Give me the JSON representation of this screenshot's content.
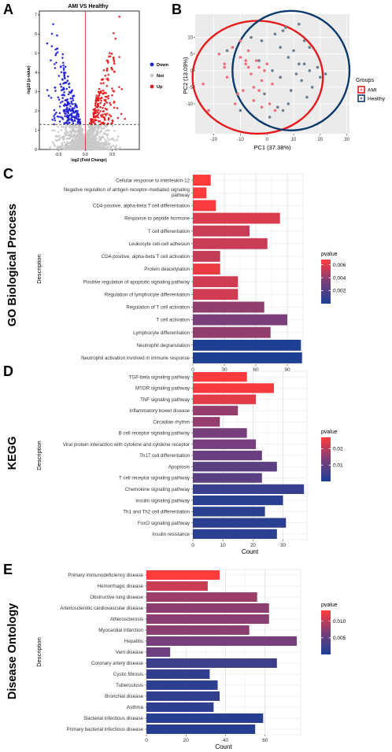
{
  "chart_data": [
    {
      "panel_label": "A",
      "type": "scatter",
      "title": "AMI VS Healthy",
      "xlabel": "log2 (Fold Change)",
      "ylabel": "-log10 (p-value)",
      "xlim": [
        -0.85,
        1.0
      ],
      "ylim": [
        0,
        7.2
      ],
      "x_ticks": [
        "-0.5",
        "0.0",
        "0.5"
      ],
      "y_ticks": [
        "0",
        "1",
        "2",
        "3",
        "4",
        "5",
        "6",
        "7"
      ],
      "threshold_y": 1.3,
      "legend": {
        "position": "right",
        "entries": [
          "Down",
          "Not",
          "Up"
        ]
      },
      "colors": {
        "Down": "#1f1fd6",
        "Not": "#c8c8c8",
        "Up": "#e41a1c"
      }
    },
    {
      "panel_label": "B",
      "type": "scatter",
      "xlabel": "PC1 (37.38%)",
      "ylabel": "PC2 (13.09%)",
      "xlim": [
        -27,
        31
      ],
      "ylim": [
        -19,
        17
      ],
      "x_ticks": [
        -20,
        -10,
        0,
        10,
        20,
        30
      ],
      "y_ticks": [
        -10,
        -5,
        0,
        5,
        10
      ],
      "legend": {
        "title": "Groups",
        "position": "right",
        "entries": [
          "AMI",
          "Healthy"
        ]
      },
      "colors": {
        "AMI": "#e41a1c",
        "Healthy": "#0b3a6b",
        "AMI_point": "#f07080",
        "Healthy_point": "#6d7f8e"
      },
      "series": [
        {
          "name": "AMI",
          "x": [
            -24,
            -22,
            -18,
            -16,
            -16,
            -13,
            -12,
            -11,
            -10,
            -9,
            -8,
            -7,
            -7,
            -6,
            -5,
            -5,
            -4,
            -3,
            -2,
            -2,
            -1,
            0,
            1,
            2,
            3,
            5,
            -15,
            -8,
            -3,
            -10
          ],
          "y": [
            -4,
            -12,
            5,
            2,
            1,
            7,
            -10,
            -7,
            4,
            -6,
            2,
            1,
            6,
            -1,
            -5,
            -9,
            3,
            1,
            -3,
            -11,
            0,
            2,
            -10,
            -4,
            -12,
            -2,
            -2,
            3,
            -6,
            9
          ]
        },
        {
          "name": "Healthy",
          "x": [
            -15,
            -10,
            -6,
            -3,
            -2,
            1,
            2,
            3,
            4,
            5,
            5,
            6,
            7,
            8,
            9,
            10,
            11,
            12,
            12,
            13,
            14,
            14,
            15,
            16,
            16,
            17,
            19,
            20,
            22,
            -1,
            8,
            6
          ],
          "y": [
            6,
            -12,
            10,
            3,
            9,
            -14,
            0,
            11,
            -11,
            7,
            -2,
            12,
            13,
            4,
            -6,
            6,
            -1,
            2,
            14,
            -3,
            9,
            2,
            -8,
            0,
            7,
            -5,
            1,
            -2,
            -1,
            -7,
            -10,
            -12
          ]
        }
      ]
    },
    {
      "panel_label": "C",
      "type": "bar",
      "side_title": "GO Biological Process",
      "xlabel": "Count",
      "ylabel": "Description",
      "xlim": [
        0,
        105
      ],
      "x_ticks": [
        0,
        30,
        60,
        90
      ],
      "legend": {
        "title": "pvalue",
        "position": "right",
        "ticks": [
          "0.006",
          "0.004",
          "0.002"
        ],
        "min": 0,
        "max": 0.0068
      },
      "categories": [
        "Cellular response to interleukin-12",
        "Negative regulation of antigen receptor-mediated signaling\npathway",
        "CD4-positive, alpha-beta T cell differentiation",
        "Response to peptide hormone",
        "T cell differentiation",
        "Leukocyte cell-cell adhesion",
        "CD4-positive, alpha-beta T cell activation",
        "Protein deacetylation",
        "Positive regulation of apoptotic signaling pathway",
        "Regulation of lymphocyte differentiation",
        "Regulation of T cell activation",
        "T cell activation",
        "Lymphocyte differentiation",
        "Neutrophil degranulation",
        "Neutrophil activation involved in immune response"
      ],
      "values": [
        17,
        13,
        22,
        83,
        54,
        71,
        26,
        26,
        43,
        43,
        68,
        90,
        74,
        103,
        104
      ],
      "pvalues": [
        0.0068,
        0.0068,
        0.0066,
        0.0058,
        0.0054,
        0.0054,
        0.0053,
        0.0063,
        0.0056,
        0.0056,
        0.004,
        0.0034,
        0.004,
        0.0001,
        0.0001
      ]
    },
    {
      "panel_label": "D",
      "type": "bar",
      "side_title": "KEGG",
      "xlabel": "Count",
      "ylabel": "Description",
      "xlim": [
        0,
        38
      ],
      "x_ticks": [
        0,
        10,
        20,
        30
      ],
      "legend": {
        "title": "pvalue",
        "position": "right",
        "ticks": [
          "0.02",
          "0.01"
        ],
        "min": 0,
        "max": 0.027
      },
      "categories": [
        "TGF-beta signaling pathway",
        "MTOR signaling pathway",
        "TNF signaling pathway",
        "Inflammatory bowel disease",
        "Circadian rhythm",
        "B cell receptor signaling pathway",
        "Viral protein interaction with cytokine and cytokine receptor",
        "Th17 cell differentiation",
        "Apoptosis",
        "T cell receptor signaling pathway",
        "Chemokine signaling pathway",
        "Insulin signaling pathway",
        "Th1 and Th2 cell differentiation",
        "FoxO signaling pathway",
        "Insulin resistance"
      ],
      "values": [
        18,
        27,
        21,
        15,
        9,
        18,
        21,
        23,
        28,
        23,
        37,
        30,
        24,
        31,
        28
      ],
      "pvalues": [
        0.027,
        0.026,
        0.024,
        0.016,
        0.016,
        0.013,
        0.013,
        0.011,
        0.009,
        0.009,
        0.004,
        0.002,
        0.002,
        0.002,
        0.002
      ]
    },
    {
      "panel_label": "E",
      "type": "bar",
      "side_title": "Disease Ontology",
      "xlabel": "Count",
      "ylabel": "Description",
      "xlim": [
        0,
        78
      ],
      "x_ticks": [
        0,
        20,
        40,
        60
      ],
      "legend": {
        "title": "pvalue",
        "position": "right",
        "ticks": [
          "0.010",
          "0.005"
        ],
        "min": 0,
        "max": 0.0132
      },
      "categories": [
        "Primary immunodeficiency disease",
        "Hemorrhagic disease",
        "Obstructive lung disease",
        "Arteriosclerotic cardiovascular disease",
        "Atherosclerosis",
        "Myocardial infarction",
        "Hepatitis",
        "Vein disease",
        "Coronary artery disease",
        "Cystic fibrosis",
        "Tuberculosis",
        "Bronchial disease",
        "Asthma",
        "Bacterial infectious disease",
        "Primary bacterial infectious disease"
      ],
      "values": [
        37,
        31,
        56,
        62,
        62,
        52,
        76,
        12,
        66,
        32,
        36,
        37,
        34,
        59,
        55
      ],
      "pvalues": [
        0.0132,
        0.0105,
        0.0083,
        0.0075,
        0.0074,
        0.0075,
        0.0064,
        0.0056,
        0.0024,
        0.0015,
        0.0013,
        0.0014,
        0.0013,
        0.0008,
        0.0008
      ]
    }
  ]
}
